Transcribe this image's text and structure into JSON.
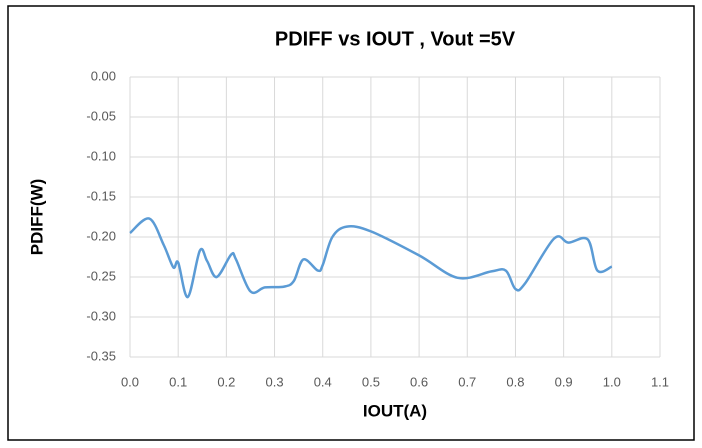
{
  "chart_data": {
    "type": "line",
    "title": "PDIFF vs IOUT , Vout =5V",
    "x_label": "IOUT(A)",
    "y_label": "PDIFF(W)",
    "x": [
      0,
      0.04,
      0.07,
      0.09,
      0.1,
      0.12,
      0.145,
      0.16,
      0.18,
      0.21,
      0.22,
      0.25,
      0.28,
      0.32,
      0.34,
      0.36,
      0.39,
      0.4,
      0.42,
      0.45,
      0.5,
      0.6,
      0.68,
      0.75,
      0.78,
      0.8,
      0.82,
      0.88,
      0.91,
      0.95,
      0.97,
      1.0
    ],
    "series": [
      {
        "name": "PDIFF",
        "color": "#5b9bd5",
        "values": [
          -0.195,
          -0.177,
          -0.21,
          -0.238,
          -0.232,
          -0.275,
          -0.217,
          -0.23,
          -0.25,
          -0.222,
          -0.228,
          -0.268,
          -0.263,
          -0.262,
          -0.255,
          -0.228,
          -0.242,
          -0.235,
          -0.2,
          -0.187,
          -0.193,
          -0.223,
          -0.251,
          -0.243,
          -0.242,
          -0.265,
          -0.258,
          -0.202,
          -0.207,
          -0.203,
          -0.242,
          -0.237
        ]
      }
    ],
    "xlim": [
      0,
      1.1
    ],
    "xticks": [
      {
        "value": 0,
        "label": "0.0"
      },
      0.1,
      0.2,
      0.3,
      0.4,
      0.5,
      0.6,
      0.7,
      0.8,
      0.9,
      {
        "value": 1,
        "label": "1.0"
      },
      1.1
    ],
    "ylim": [
      -0.35,
      0
    ],
    "yticks": [
      {
        "value": 0,
        "label": "0.00"
      },
      -0.05,
      {
        "value": -0.1,
        "label": "-0.10"
      },
      -0.15,
      {
        "value": -0.2,
        "label": "-0.20"
      },
      -0.25,
      {
        "value": -0.3,
        "label": "-0.30"
      },
      -0.35
    ],
    "grid": true
  }
}
